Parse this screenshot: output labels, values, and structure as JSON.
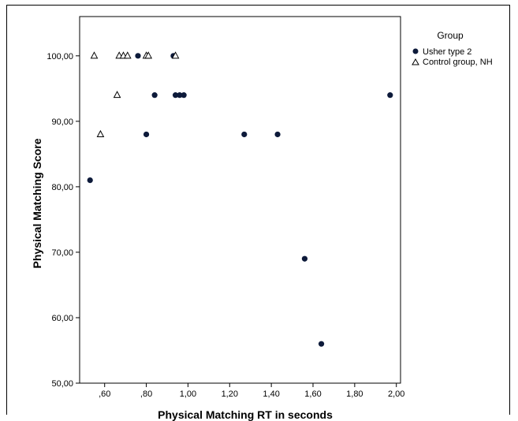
{
  "chart_data": {
    "type": "scatter",
    "xlabel": "Physical Matching RT in seconds",
    "ylabel": "Physical Matching Score",
    "xlim": [
      0.48,
      2.02
    ],
    "ylim": [
      50,
      106
    ],
    "x_ticks": [
      {
        "value": 0.6,
        "label": ",60"
      },
      {
        "value": 0.8,
        "label": ",80"
      },
      {
        "value": 1.0,
        "label": "1,00"
      },
      {
        "value": 1.2,
        "label": "1,20"
      },
      {
        "value": 1.4,
        "label": "1,40"
      },
      {
        "value": 1.6,
        "label": "1,60"
      },
      {
        "value": 1.8,
        "label": "1,80"
      },
      {
        "value": 2.0,
        "label": "2,00"
      }
    ],
    "y_ticks": [
      {
        "value": 50,
        "label": "50,00"
      },
      {
        "value": 60,
        "label": "60,00"
      },
      {
        "value": 70,
        "label": "70,00"
      },
      {
        "value": 80,
        "label": "80,00"
      },
      {
        "value": 90,
        "label": "90,00"
      },
      {
        "value": 100,
        "label": "100,00"
      }
    ],
    "grid": false,
    "legend": {
      "title": "Group",
      "placement": "right-top"
    },
    "series": [
      {
        "name": "Usher type 2",
        "marker": "filled-circle",
        "color": "#0d1a3a",
        "points": [
          {
            "x": 0.53,
            "y": 81
          },
          {
            "x": 0.76,
            "y": 100
          },
          {
            "x": 0.8,
            "y": 88
          },
          {
            "x": 0.84,
            "y": 94
          },
          {
            "x": 0.93,
            "y": 100
          },
          {
            "x": 0.94,
            "y": 94
          },
          {
            "x": 0.96,
            "y": 94
          },
          {
            "x": 0.98,
            "y": 94
          },
          {
            "x": 1.27,
            "y": 88
          },
          {
            "x": 1.43,
            "y": 88
          },
          {
            "x": 1.56,
            "y": 69
          },
          {
            "x": 1.64,
            "y": 56
          },
          {
            "x": 1.97,
            "y": 94
          }
        ]
      },
      {
        "name": "Control group, NH",
        "marker": "open-triangle",
        "color": "#000000",
        "points": [
          {
            "x": 0.55,
            "y": 100
          },
          {
            "x": 0.58,
            "y": 88
          },
          {
            "x": 0.66,
            "y": 94
          },
          {
            "x": 0.67,
            "y": 100
          },
          {
            "x": 0.69,
            "y": 100
          },
          {
            "x": 0.71,
            "y": 100
          },
          {
            "x": 0.8,
            "y": 100
          },
          {
            "x": 0.81,
            "y": 100
          },
          {
            "x": 0.94,
            "y": 100
          }
        ]
      }
    ]
  }
}
